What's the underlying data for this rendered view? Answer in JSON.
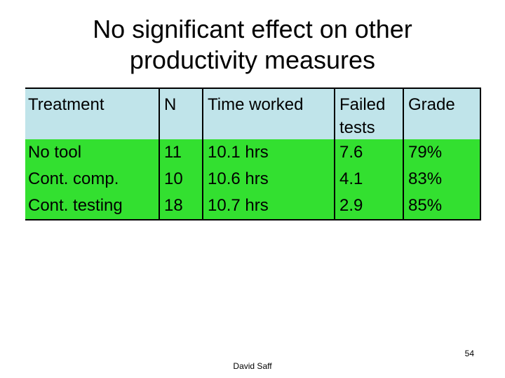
{
  "title": {
    "line1": "No significant effect on other",
    "line2": "productivity measures"
  },
  "table": {
    "headers": [
      "Treatment",
      "N",
      "Time worked",
      "Failed tests",
      "Grade"
    ],
    "rows": [
      [
        "No tool",
        "11",
        "10.1 hrs",
        "7.6",
        "79%"
      ],
      [
        "Cont. comp.",
        "10",
        "10.6 hrs",
        "4.1",
        "83%"
      ],
      [
        "Cont. testing",
        "18",
        "10.7 hrs",
        "2.9",
        "85%"
      ]
    ]
  },
  "footer": {
    "author": "David Saff",
    "page_number": "54"
  },
  "colors": {
    "header_bg": "#c0e4ea",
    "row_bg": "#33e030"
  }
}
